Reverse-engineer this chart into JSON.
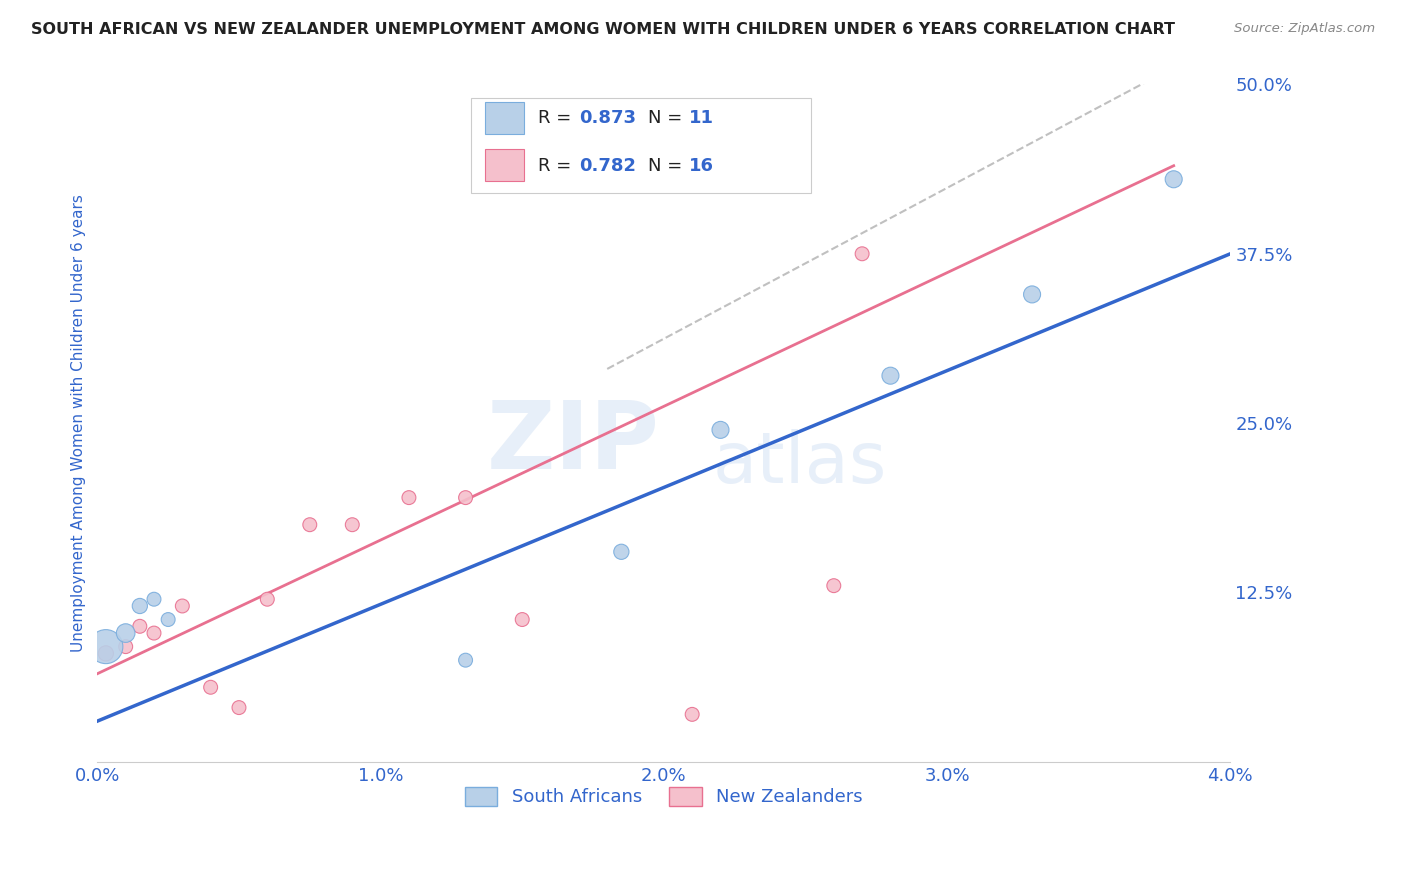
{
  "title": "SOUTH AFRICAN VS NEW ZEALANDER UNEMPLOYMENT AMONG WOMEN WITH CHILDREN UNDER 6 YEARS CORRELATION CHART",
  "source": "Source: ZipAtlas.com",
  "ylabel": "Unemployment Among Women with Children Under 6 years",
  "xlim": [
    0.0,
    0.04
  ],
  "ylim": [
    0.0,
    0.5
  ],
  "xticks": [
    0.0,
    0.01,
    0.02,
    0.03,
    0.04
  ],
  "xtick_labels": [
    "0.0%",
    "1.0%",
    "2.0%",
    "3.0%",
    "4.0%"
  ],
  "yticks": [
    0.0,
    0.125,
    0.25,
    0.375,
    0.5
  ],
  "ytick_labels": [
    "",
    "12.5%",
    "25.0%",
    "37.5%",
    "50.0%"
  ],
  "south_africans": {
    "x": [
      0.0003,
      0.001,
      0.0015,
      0.002,
      0.0025,
      0.013,
      0.0185,
      0.022,
      0.028,
      0.033,
      0.038
    ],
    "y": [
      0.085,
      0.095,
      0.115,
      0.12,
      0.105,
      0.075,
      0.155,
      0.245,
      0.285,
      0.345,
      0.43
    ],
    "sizes": [
      600,
      180,
      120,
      100,
      100,
      100,
      120,
      150,
      150,
      150,
      150
    ],
    "color": "#b8d0e8",
    "edge_color": "#7aaddd",
    "R": 0.873,
    "N": 11
  },
  "new_zealanders": {
    "x": [
      0.0003,
      0.001,
      0.0015,
      0.002,
      0.003,
      0.004,
      0.005,
      0.006,
      0.0075,
      0.009,
      0.011,
      0.013,
      0.015,
      0.021,
      0.026,
      0.027
    ],
    "y": [
      0.08,
      0.085,
      0.1,
      0.095,
      0.115,
      0.055,
      0.04,
      0.12,
      0.175,
      0.175,
      0.195,
      0.195,
      0.105,
      0.035,
      0.13,
      0.375
    ],
    "sizes": [
      120,
      100,
      100,
      100,
      100,
      100,
      100,
      100,
      100,
      100,
      100,
      100,
      100,
      100,
      100,
      100
    ],
    "color": "#f5c0cc",
    "edge_color": "#e87090",
    "R": 0.782,
    "N": 16
  },
  "blue_line": {
    "x": [
      0.0,
      0.04
    ],
    "y": [
      0.03,
      0.375
    ],
    "color": "#3366cc",
    "linewidth": 2.5
  },
  "pink_line": {
    "x": [
      0.0,
      0.038
    ],
    "y": [
      0.065,
      0.44
    ],
    "color": "#e87090",
    "linewidth": 2.0
  },
  "gray_dashed_line": {
    "x": [
      0.018,
      0.04
    ],
    "y": [
      0.29,
      0.535
    ],
    "color": "#c0c0c0",
    "linewidth": 1.5,
    "linestyle": "--"
  },
  "watermark_zip": "ZIP",
  "watermark_atlas": "atlas",
  "background_color": "#ffffff",
  "title_color": "#222222",
  "axis_label_color": "#3366cc",
  "tick_color": "#3366cc",
  "grid_color": "#dddddd",
  "legend_R_color": "#3366cc",
  "legend_N_color": "#3366cc",
  "legend_text_color": "#222222",
  "sa_legend_color": "#b8d0e8",
  "sa_legend_edge": "#7aaddd",
  "nz_legend_color": "#f5c0cc",
  "nz_legend_edge": "#e87090"
}
